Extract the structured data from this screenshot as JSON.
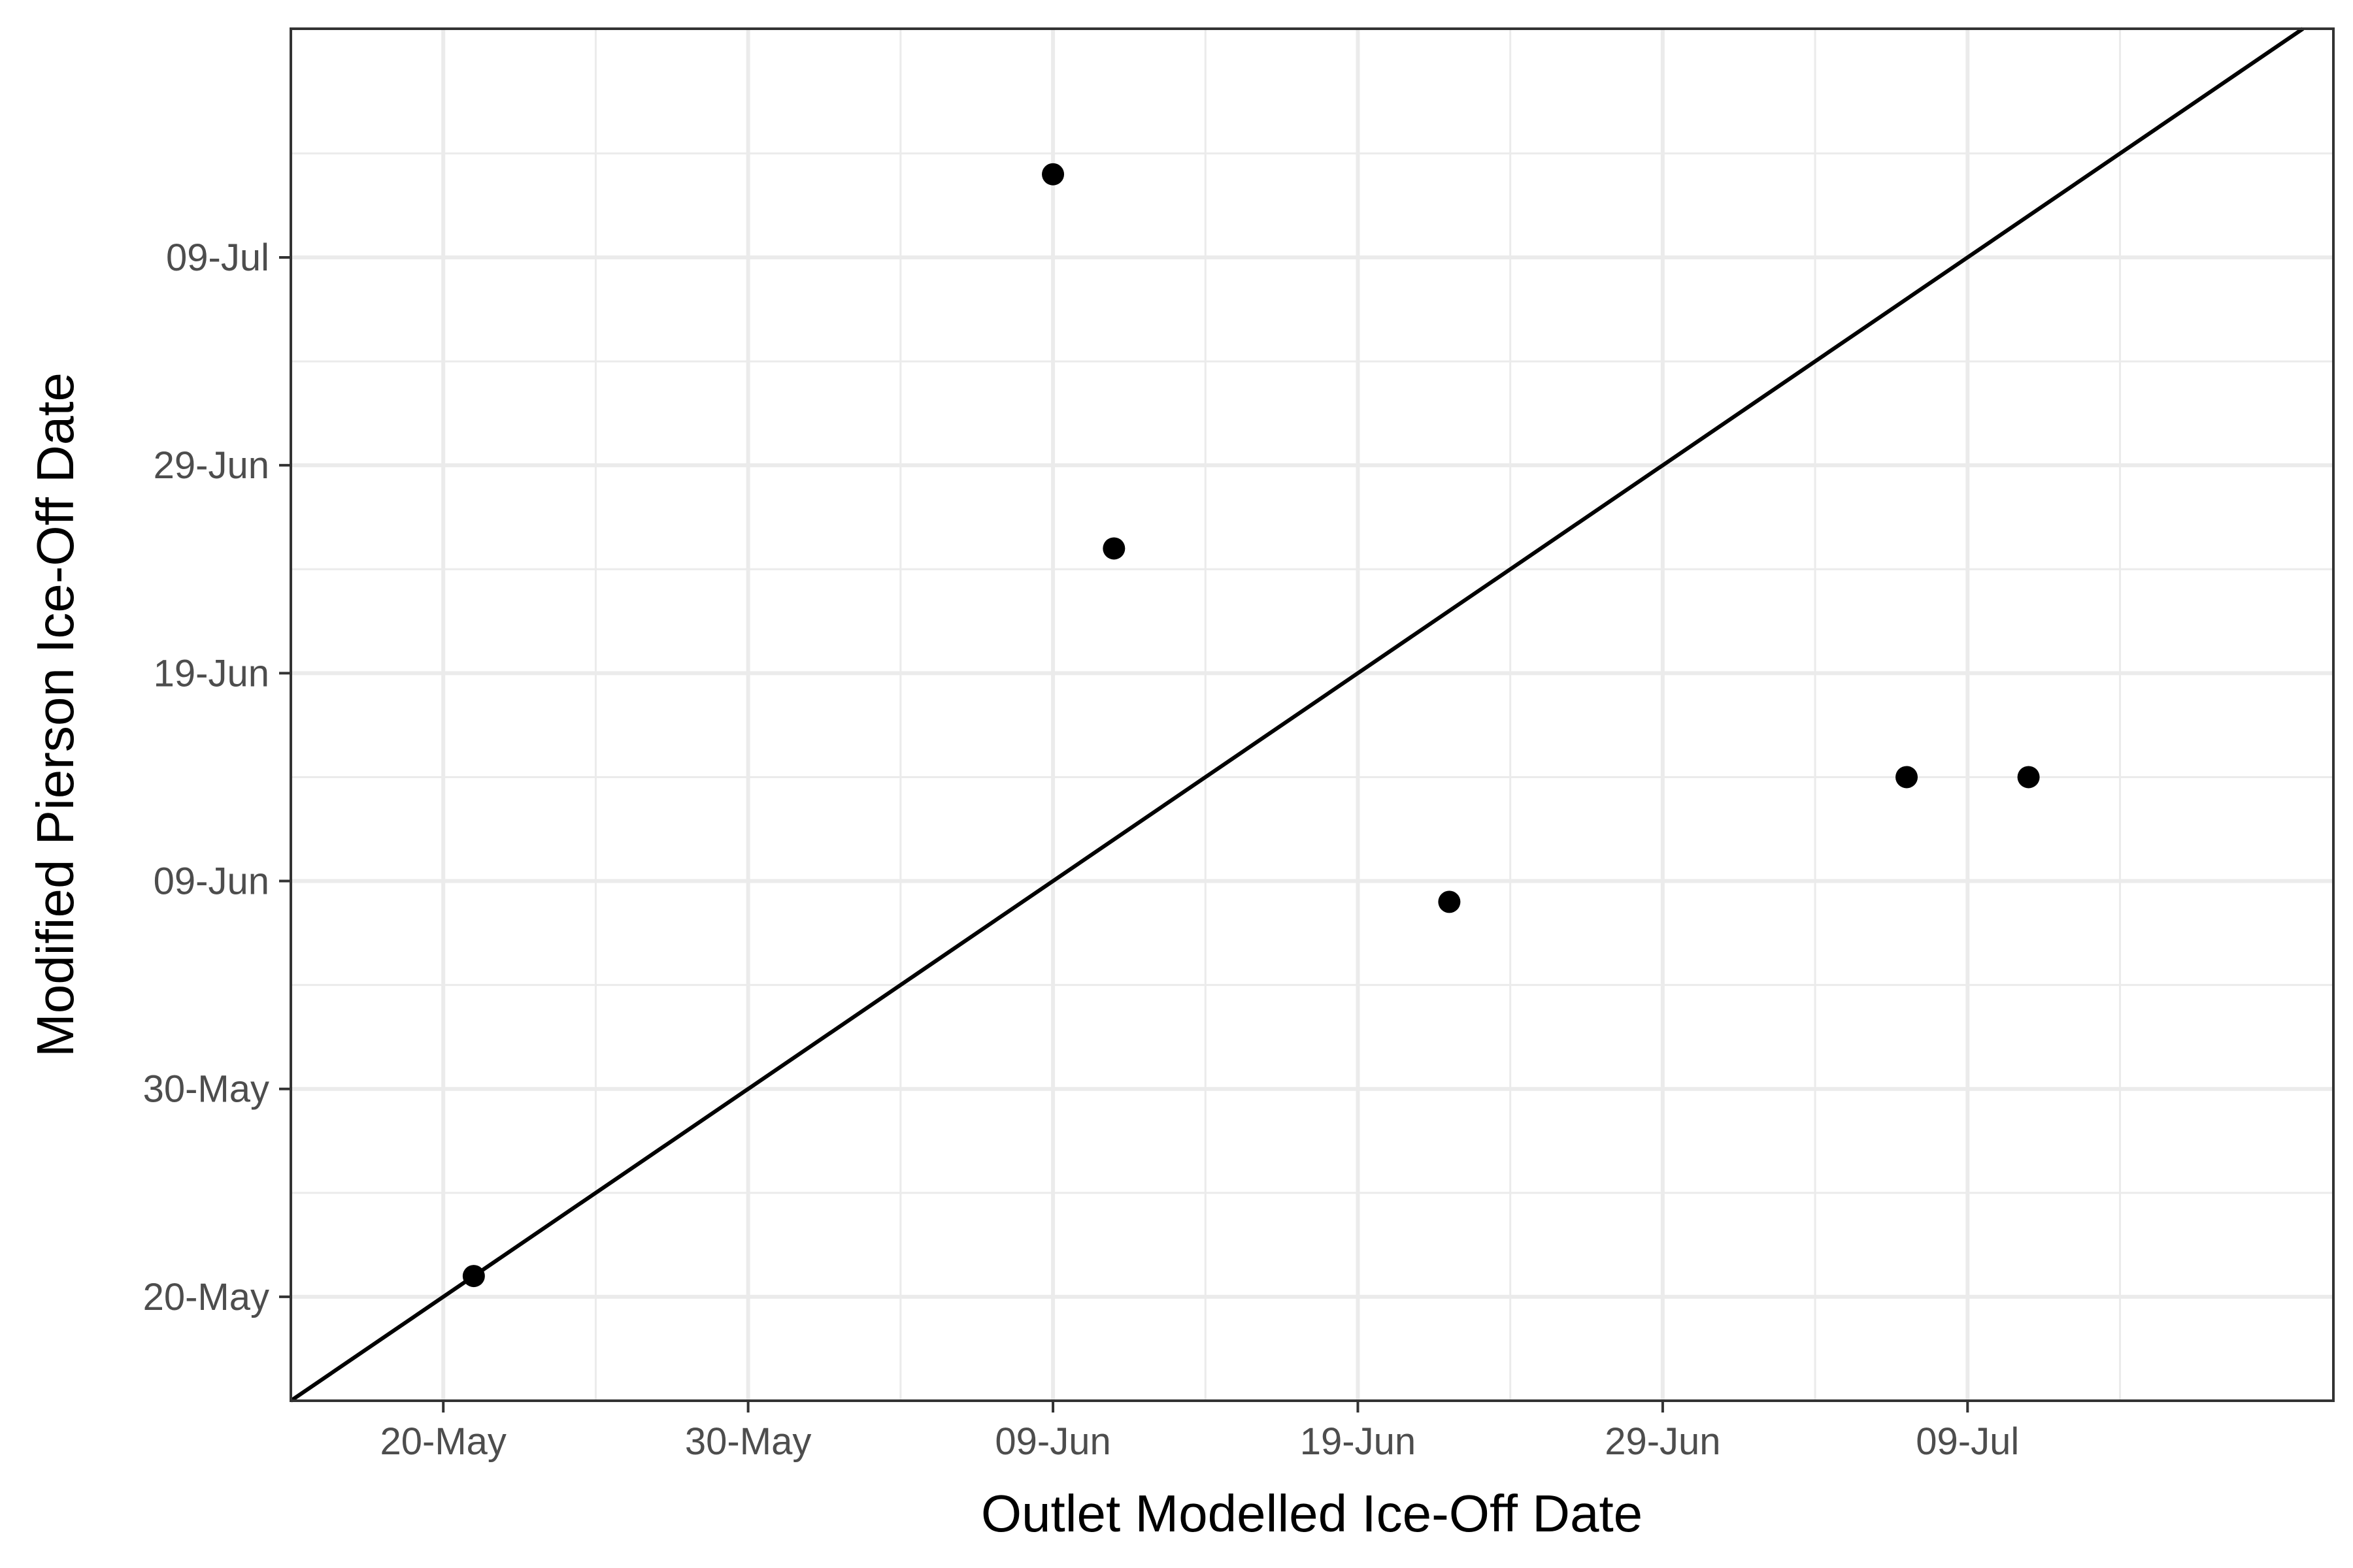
{
  "chart_data": {
    "type": "scatter",
    "title": "",
    "xlabel": "Outlet Modelled Ice-Off Date",
    "ylabel": "Modified Pierson Ice-Off Date",
    "xlim": [
      "2024-05-15",
      "2024-07-21"
    ],
    "ylim": [
      "2024-05-15",
      "2024-07-20"
    ],
    "x_ticks": [
      {
        "date": "2024-05-20",
        "label": "20-May"
      },
      {
        "date": "2024-05-30",
        "label": "30-May"
      },
      {
        "date": "2024-06-09",
        "label": "09-Jun"
      },
      {
        "date": "2024-06-19",
        "label": "19-Jun"
      },
      {
        "date": "2024-06-29",
        "label": "29-Jun"
      },
      {
        "date": "2024-07-09",
        "label": "09-Jul"
      }
    ],
    "y_ticks": [
      {
        "date": "2024-05-20",
        "label": "20-May"
      },
      {
        "date": "2024-05-30",
        "label": "30-May"
      },
      {
        "date": "2024-06-09",
        "label": "09-Jun"
      },
      {
        "date": "2024-06-19",
        "label": "19-Jun"
      },
      {
        "date": "2024-06-29",
        "label": "29-Jun"
      },
      {
        "date": "2024-07-09",
        "label": "09-Jul"
      }
    ],
    "points": [
      {
        "x": "2024-05-21",
        "y": "2024-05-21"
      },
      {
        "x": "2024-06-09",
        "y": "2024-07-13"
      },
      {
        "x": "2024-06-11",
        "y": "2024-06-25"
      },
      {
        "x": "2024-06-22",
        "y": "2024-06-08"
      },
      {
        "x": "2024-07-07",
        "y": "2024-06-14"
      },
      {
        "x": "2024-07-11",
        "y": "2024-06-14"
      }
    ],
    "reference_line": "y = x",
    "grid": true,
    "legend": "none",
    "colors": {
      "points": "#000000",
      "line": "#000000",
      "grid": "#ebebeb",
      "border": "#333333"
    }
  }
}
